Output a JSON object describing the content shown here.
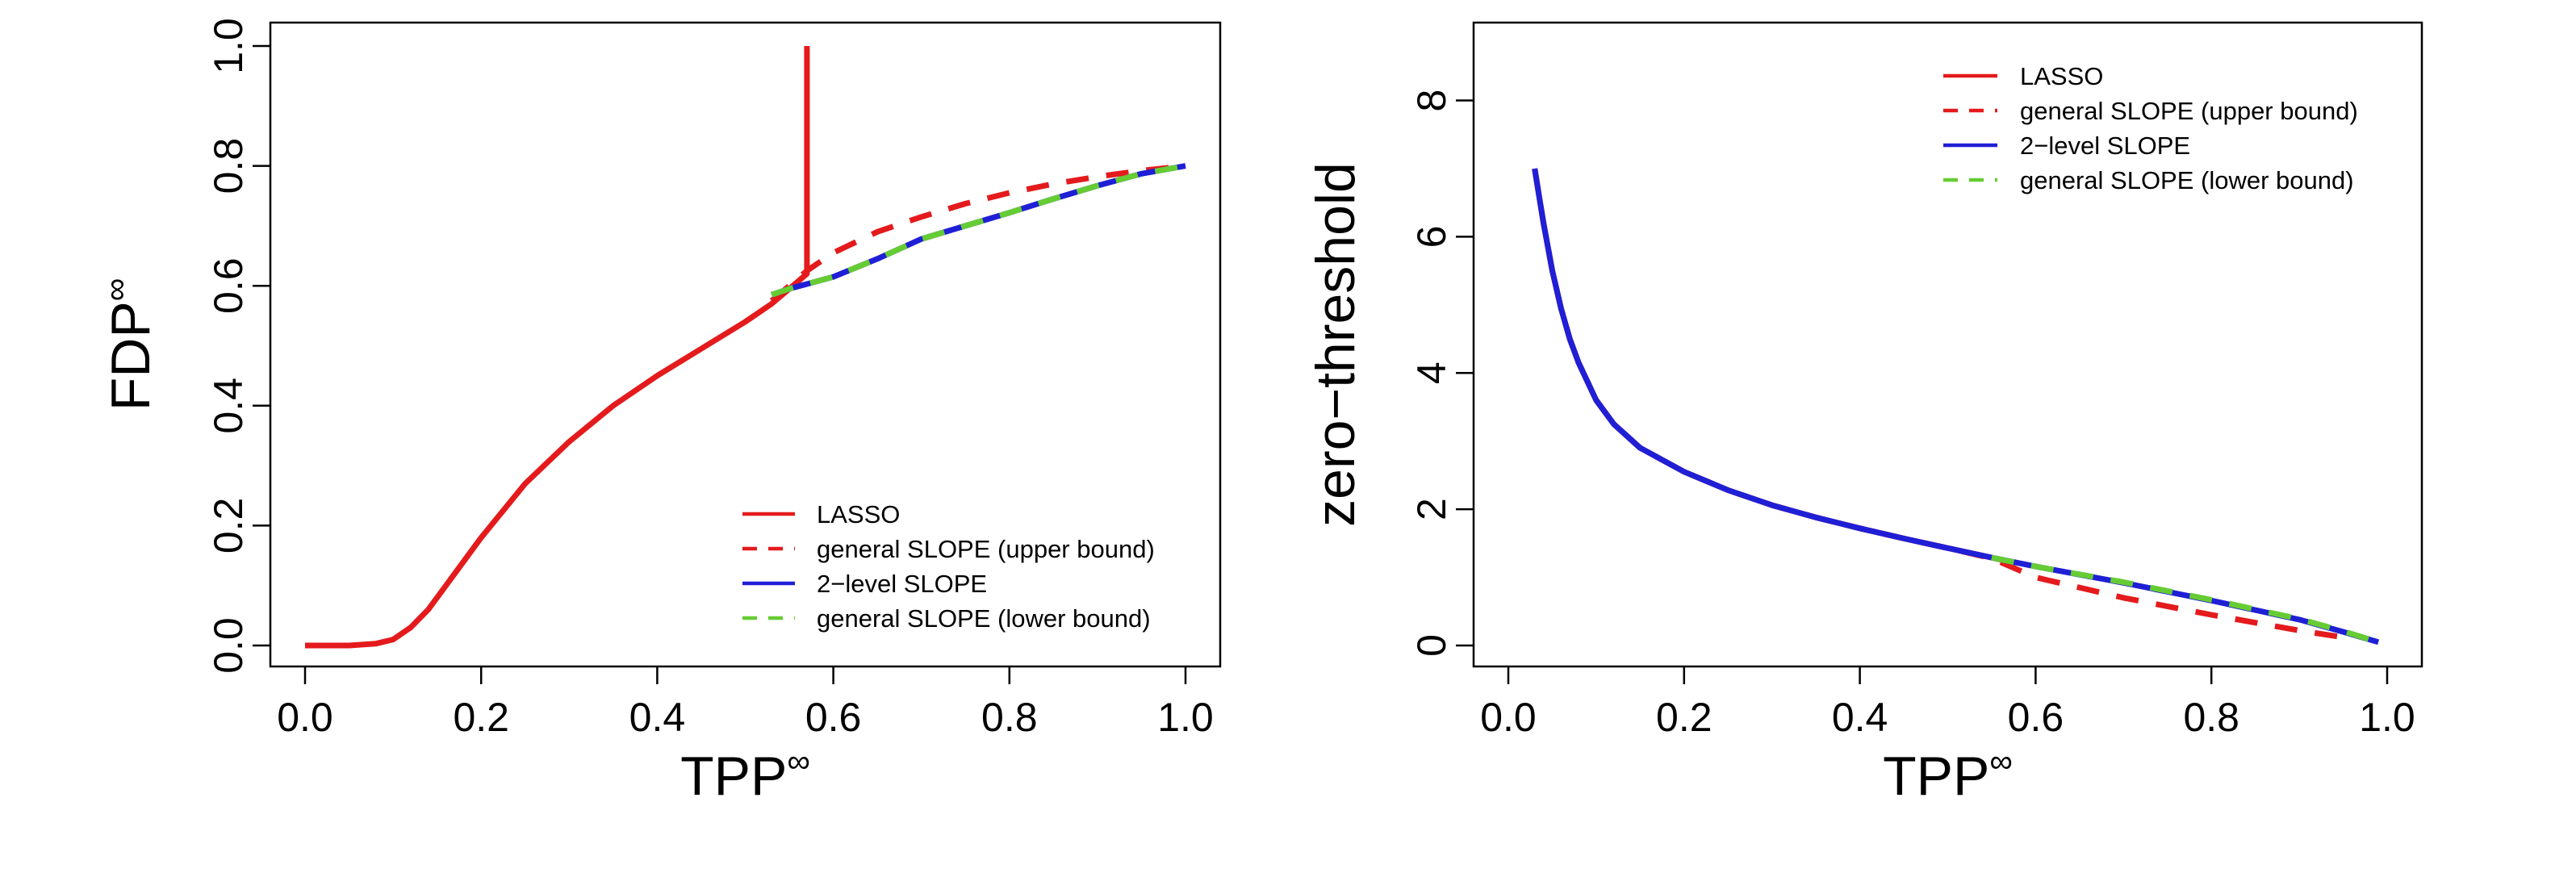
{
  "colors": {
    "lasso": "#e41a1c",
    "slope_upper": "#e41a1c",
    "two_level": "#1f1fd6",
    "slope_lower": "#66cc33"
  },
  "chart_data": [
    {
      "type": "line",
      "xlabel": "TPP",
      "xlabel_sup": "∞",
      "ylabel": "FDP",
      "ylabel_sup": "∞",
      "xlim": [
        0,
        1
      ],
      "ylim": [
        0,
        1
      ],
      "xticks": [
        0.0,
        0.2,
        0.4,
        0.6,
        0.8,
        1.0
      ],
      "yticks": [
        0.0,
        0.2,
        0.4,
        0.6,
        0.8,
        1.0
      ],
      "xtick_labels": [
        "0.0",
        "0.2",
        "0.4",
        "0.6",
        "0.8",
        "1.0"
      ],
      "ytick_labels": [
        "0.0",
        "0.2",
        "0.4",
        "0.6",
        "0.8",
        "1.0"
      ],
      "legend_position": "bottom-right",
      "grid": false,
      "series": [
        {
          "name": "LASSO",
          "style": "solid",
          "color": "lasso",
          "x": [
            0.0,
            0.05,
            0.08,
            0.1,
            0.12,
            0.14,
            0.16,
            0.18,
            0.2,
            0.25,
            0.3,
            0.35,
            0.4,
            0.45,
            0.5,
            0.53,
            0.55,
            0.57,
            0.57,
            0.57
          ],
          "y": [
            0.0,
            0.0,
            0.003,
            0.01,
            0.03,
            0.06,
            0.1,
            0.14,
            0.18,
            0.27,
            0.34,
            0.4,
            0.45,
            0.495,
            0.54,
            0.57,
            0.595,
            0.62,
            0.62,
            1.0
          ]
        },
        {
          "name": "general SLOPE (upper bound)",
          "style": "dashed",
          "color": "slope_upper",
          "x": [
            0.53,
            0.57,
            0.6,
            0.65,
            0.7,
            0.75,
            0.8,
            0.85,
            0.9,
            0.95,
            1.0
          ],
          "y": [
            0.575,
            0.625,
            0.655,
            0.69,
            0.715,
            0.737,
            0.755,
            0.77,
            0.782,
            0.792,
            0.8
          ]
        },
        {
          "name": "2−level SLOPE",
          "style": "solid",
          "color": "two_level",
          "x": [
            0.53,
            0.55,
            0.6,
            0.65,
            0.7,
            0.75,
            0.8,
            0.85,
            0.9,
            0.95,
            1.0
          ],
          "y": [
            0.585,
            0.595,
            0.615,
            0.645,
            0.678,
            0.7,
            0.722,
            0.745,
            0.767,
            0.787,
            0.8
          ]
        },
        {
          "name": "general SLOPE (lower bound)",
          "style": "dashed",
          "color": "slope_lower",
          "x": [
            0.53,
            0.55,
            0.6,
            0.65,
            0.7,
            0.75,
            0.8,
            0.85,
            0.9,
            0.95,
            1.0
          ],
          "y": [
            0.585,
            0.595,
            0.615,
            0.645,
            0.678,
            0.7,
            0.722,
            0.745,
            0.767,
            0.787,
            0.8
          ]
        }
      ]
    },
    {
      "type": "line",
      "xlabel": "TPP",
      "xlabel_sup": "∞",
      "ylabel": "zero−threshold",
      "ylabel_sup": "",
      "xlim": [
        0,
        1
      ],
      "ylim": [
        0,
        8.8
      ],
      "xticks": [
        0.0,
        0.2,
        0.4,
        0.6,
        0.8,
        1.0
      ],
      "yticks": [
        0,
        2,
        4,
        6,
        8
      ],
      "xtick_labels": [
        "0.0",
        "0.2",
        "0.4",
        "0.6",
        "0.8",
        "1.0"
      ],
      "ytick_labels": [
        "0",
        "2",
        "4",
        "6",
        "8"
      ],
      "legend_position": "top-right",
      "grid": false,
      "series": [
        {
          "name": "LASSO",
          "style": "solid",
          "color": "lasso",
          "x": [
            0.03,
            0.035,
            0.04,
            0.05,
            0.06,
            0.07,
            0.08,
            0.1,
            0.12,
            0.15,
            0.2,
            0.25,
            0.3,
            0.35,
            0.4,
            0.45,
            0.5,
            0.55,
            0.57
          ],
          "y": [
            7.0,
            6.6,
            6.2,
            5.5,
            4.95,
            4.5,
            4.15,
            3.6,
            3.25,
            2.9,
            2.55,
            2.28,
            2.06,
            1.88,
            1.72,
            1.57,
            1.43,
            1.29,
            1.23
          ]
        },
        {
          "name": "general SLOPE (upper bound)",
          "style": "dashed",
          "color": "slope_upper",
          "x": [
            0.03,
            0.035,
            0.04,
            0.05,
            0.06,
            0.07,
            0.08,
            0.1,
            0.12,
            0.15,
            0.2,
            0.25,
            0.3,
            0.35,
            0.4,
            0.45,
            0.5,
            0.55,
            0.6,
            0.7,
            0.8,
            0.9,
            0.95
          ],
          "y": [
            7.0,
            6.6,
            6.2,
            5.5,
            4.95,
            4.5,
            4.15,
            3.6,
            3.25,
            2.9,
            2.55,
            2.28,
            2.06,
            1.88,
            1.72,
            1.57,
            1.43,
            1.28,
            1.0,
            0.7,
            0.45,
            0.22,
            0.12
          ]
        },
        {
          "name": "2−level SLOPE",
          "style": "solid",
          "color": "two_level",
          "x": [
            0.03,
            0.035,
            0.04,
            0.05,
            0.06,
            0.07,
            0.08,
            0.1,
            0.12,
            0.15,
            0.2,
            0.25,
            0.3,
            0.35,
            0.4,
            0.45,
            0.5,
            0.55,
            0.6,
            0.7,
            0.8,
            0.9,
            0.95,
            0.99
          ],
          "y": [
            7.0,
            6.6,
            6.2,
            5.5,
            4.95,
            4.5,
            4.15,
            3.6,
            3.25,
            2.9,
            2.55,
            2.28,
            2.06,
            1.88,
            1.72,
            1.57,
            1.43,
            1.29,
            1.16,
            0.92,
            0.66,
            0.38,
            0.2,
            0.05
          ]
        },
        {
          "name": "general SLOPE (lower bound)",
          "style": "dashed",
          "color": "slope_lower",
          "x": [
            0.55,
            0.6,
            0.7,
            0.8,
            0.9,
            0.95,
            0.98
          ],
          "y": [
            1.29,
            1.16,
            0.93,
            0.67,
            0.39,
            0.21,
            0.09
          ]
        }
      ]
    }
  ]
}
